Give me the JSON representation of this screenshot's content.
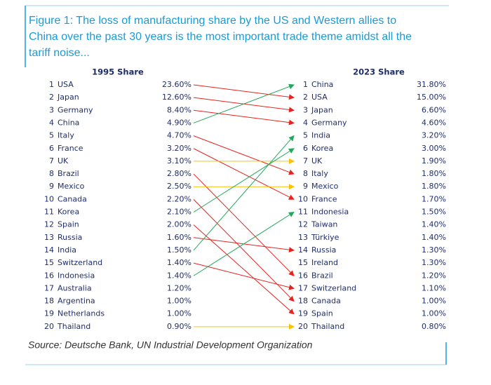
{
  "title": [
    "Figure 1: The loss of manufacturing share by the US and Western allies to",
    "China over the past 30 years is the most important trade theme amidst all the",
    "tariff noise..."
  ],
  "left": {
    "header": "1995 Share",
    "rows": [
      {
        "rank": "1",
        "country": "USA",
        "share": "23.60%"
      },
      {
        "rank": "2",
        "country": "Japan",
        "share": "12.60%"
      },
      {
        "rank": "3",
        "country": "Germany",
        "share": "8.40%"
      },
      {
        "rank": "4",
        "country": "China",
        "share": "4.90%"
      },
      {
        "rank": "5",
        "country": "Italy",
        "share": "4.70%"
      },
      {
        "rank": "6",
        "country": "France",
        "share": "3.20%"
      },
      {
        "rank": "7",
        "country": "UK",
        "share": "3.10%"
      },
      {
        "rank": "8",
        "country": "Brazil",
        "share": "2.80%"
      },
      {
        "rank": "9",
        "country": "Mexico",
        "share": "2.50%"
      },
      {
        "rank": "10",
        "country": "Canada",
        "share": "2.20%"
      },
      {
        "rank": "11",
        "country": "Korea",
        "share": "2.10%"
      },
      {
        "rank": "12",
        "country": "Spain",
        "share": "2.00%"
      },
      {
        "rank": "13",
        "country": "Russia",
        "share": "1.60%"
      },
      {
        "rank": "14",
        "country": "India",
        "share": "1.50%"
      },
      {
        "rank": "15",
        "country": "Switzerland",
        "share": "1.40%"
      },
      {
        "rank": "16",
        "country": "Indonesia",
        "share": "1.40%"
      },
      {
        "rank": "17",
        "country": "Australia",
        "share": "1.20%"
      },
      {
        "rank": "18",
        "country": "Argentina",
        "share": "1.00%"
      },
      {
        "rank": "19",
        "country": "Netherlands",
        "share": "1.00%"
      },
      {
        "rank": "20",
        "country": "Thailand",
        "share": "0.90%"
      }
    ]
  },
  "right": {
    "header": "2023 Share",
    "rows": [
      {
        "rank": "1",
        "country": "China",
        "share": "31.80%"
      },
      {
        "rank": "2",
        "country": "USA",
        "share": "15.00%"
      },
      {
        "rank": "3",
        "country": "Japan",
        "share": "6.60%"
      },
      {
        "rank": "4",
        "country": "Germany",
        "share": "4.60%"
      },
      {
        "rank": "5",
        "country": "India",
        "share": "3.20%"
      },
      {
        "rank": "6",
        "country": "Korea",
        "share": "3.00%"
      },
      {
        "rank": "7",
        "country": "UK",
        "share": "1.90%"
      },
      {
        "rank": "8",
        "country": "Italy",
        "share": "1.80%"
      },
      {
        "rank": "9",
        "country": "Mexico",
        "share": "1.80%"
      },
      {
        "rank": "10",
        "country": "France",
        "share": "1.70%"
      },
      {
        "rank": "11",
        "country": "Indonesia",
        "share": "1.50%"
      },
      {
        "rank": "12",
        "country": "Taiwan",
        "share": "1.40%"
      },
      {
        "rank": "13",
        "country": "Türkiye",
        "share": "1.40%"
      },
      {
        "rank": "14",
        "country": "Russia",
        "share": "1.30%"
      },
      {
        "rank": "15",
        "country": "Ireland",
        "share": "1.30%"
      },
      {
        "rank": "16",
        "country": "Brazil",
        "share": "1.20%"
      },
      {
        "rank": "17",
        "country": "Switzerland",
        "share": "1.10%"
      },
      {
        "rank": "18",
        "country": "Canada",
        "share": "1.00%"
      },
      {
        "rank": "19",
        "country": "Spain",
        "share": "1.00%"
      },
      {
        "rank": "20",
        "country": "Thailand",
        "share": "0.80%"
      }
    ]
  },
  "source": "Source: Deutsche Bank, UN Industrial Development Organization"
}
